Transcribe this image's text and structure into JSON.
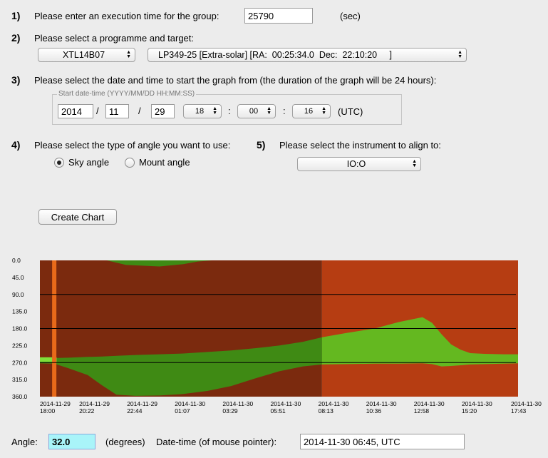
{
  "step1": {
    "number": "1)",
    "label": "Please enter an execution time for the group:",
    "value": "25790",
    "unit": "(sec)"
  },
  "step2": {
    "number": "2)",
    "label": "Please select a programme and target:",
    "programme": "XTL14B07",
    "target": "LP349-25 [Extra-solar] [RA:  00:25:34.0  Dec:  22:10:20     ]"
  },
  "step3": {
    "number": "3)",
    "label": "Please select the date and time to start the graph from (the duration of the graph will be 24 hours):",
    "legend": "Start date-time (YYYY/MM/DD HH:MM:SS)",
    "year": "2014",
    "month": "11",
    "day": "29",
    "hour": "18",
    "minute": "00",
    "second": "16",
    "slash": "/",
    "colon": ":",
    "tz": "(UTC)"
  },
  "step4": {
    "number": "4)",
    "label": "Please select the type of angle you want to use:",
    "options": [
      "Sky angle",
      "Mount angle"
    ],
    "selected": "Sky angle"
  },
  "step5": {
    "number": "5)",
    "label": "Please select the instrument to align to:",
    "instrument": "IO:O"
  },
  "create_chart_label": "Create Chart",
  "footer": {
    "angle_label": "Angle:",
    "angle_value": "32.0",
    "angle_unit": "(degrees)",
    "datetime_label": "Date-time (of mouse pointer):",
    "datetime_value": "2014-11-30 06:45, UTC"
  },
  "colors": {
    "forbidden_night": "#7b2a0e",
    "forbidden_day": "#b63d12",
    "allowed_night": "#3f8a14",
    "allowed_day": "#64b820",
    "highlight": "#7fdf3a",
    "marker": "#e86a1a",
    "angle_field_bg": "#a9f4f9"
  },
  "chart_data": {
    "type": "heatmap",
    "ylim": [
      0,
      360
    ],
    "yticks": [
      "0.0",
      "45.0",
      "90.0",
      "135.0",
      "180.0",
      "225.0",
      "270.0",
      "315.0",
      "360.0"
    ],
    "xticks": [
      [
        "2014-11-29",
        "18:00"
      ],
      [
        "2014-11-29",
        "20:22"
      ],
      [
        "2014-11-29",
        "22:44"
      ],
      [
        "2014-11-30",
        "01:07"
      ],
      [
        "2014-11-30",
        "03:29"
      ],
      [
        "2014-11-30",
        "05:51"
      ],
      [
        "2014-11-30",
        "08:13"
      ],
      [
        "2014-11-30",
        "10:36"
      ],
      [
        "2014-11-30",
        "12:58"
      ],
      [
        "2014-11-30",
        "15:20"
      ],
      [
        "2014-11-30",
        "17:43"
      ]
    ],
    "hlines": [
      90,
      180,
      270
    ],
    "night_until_fraction": 0.59,
    "marker_at_fraction": 0.03,
    "top_green_band": {
      "x": [
        0.14,
        0.18,
        0.25,
        0.3,
        0.33,
        0.36
      ],
      "low": [
        0,
        0,
        0,
        0,
        0,
        0
      ],
      "high": [
        0,
        12,
        16,
        10,
        3,
        0
      ]
    },
    "main_green_band": {
      "x": [
        0.0,
        0.03,
        0.06,
        0.1,
        0.13,
        0.16,
        0.2,
        0.25,
        0.3,
        0.35,
        0.4,
        0.45,
        0.5,
        0.55,
        0.59,
        0.64,
        0.7,
        0.75,
        0.8,
        0.82,
        0.84,
        0.86,
        0.88,
        0.9,
        0.93,
        0.97,
        1.0
      ],
      "low": [
        262,
        258,
        257,
        255,
        254,
        252,
        250,
        248,
        246,
        242,
        238,
        232,
        225,
        215,
        203,
        192,
        180,
        163,
        150,
        165,
        195,
        222,
        236,
        245,
        247,
        248,
        248
      ],
      "high": [
        272,
        273,
        285,
        303,
        330,
        355,
        358,
        357,
        353,
        345,
        332,
        312,
        293,
        280,
        275,
        274,
        273,
        273,
        272,
        274,
        280,
        279,
        277,
        275,
        274,
        273,
        272
      ]
    },
    "highlight_band": {
      "x": [
        0.0,
        0.035
      ],
      "low": [
        256,
        256
      ],
      "high": [
        268,
        268
      ]
    }
  }
}
